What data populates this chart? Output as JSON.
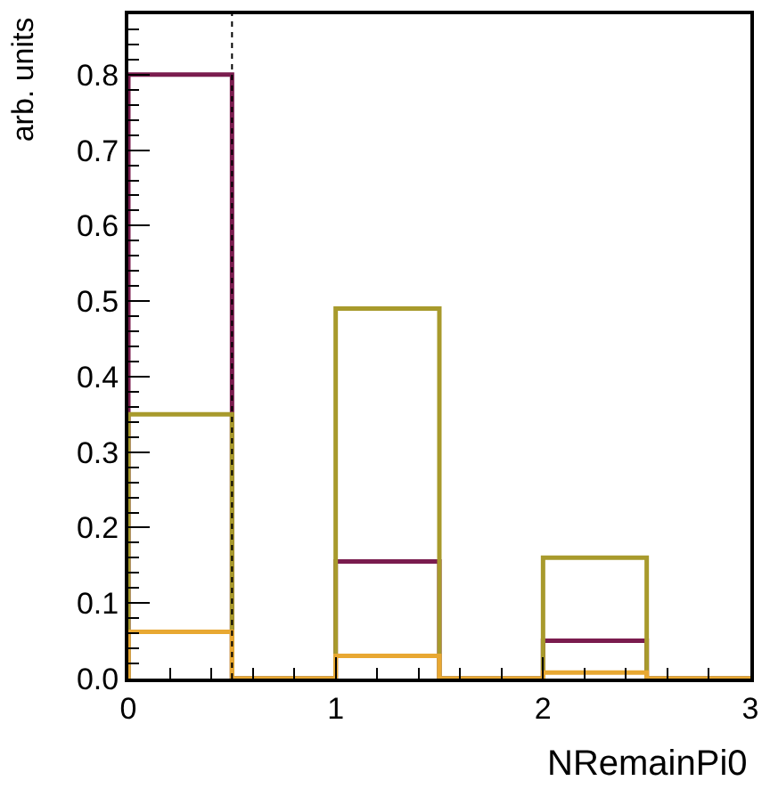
{
  "chart_data": {
    "type": "histogram",
    "xlabel": "NRemainPi0",
    "ylabel": "arb. units",
    "bins": [
      0,
      0.5,
      1,
      1.5,
      2,
      2.5,
      3
    ],
    "series": [
      {
        "color": "#7a1c4e",
        "values": [
          0.8,
          0,
          0.155,
          0,
          0.05,
          0
        ]
      },
      {
        "color": "#a89a2c",
        "values": [
          0.35,
          0,
          0.49,
          0,
          0.16,
          0
        ]
      },
      {
        "color": "#e8a832",
        "values": [
          0.062,
          0,
          0.03,
          0,
          0.008,
          0
        ]
      }
    ],
    "xlim": [
      0,
      3
    ],
    "xticks": [
      0,
      1,
      2,
      3
    ],
    "ylim": [
      0,
      0.88
    ],
    "yticks": [
      {
        "value": 0,
        "label": "0.0"
      },
      0.1,
      0.2,
      0.3,
      0.4,
      0.5,
      0.6,
      0.7,
      0.8
    ],
    "ref_lines": [
      {
        "axis": "x",
        "value": 0.5,
        "color": "#000000",
        "line_style": "dotted"
      }
    ]
  }
}
